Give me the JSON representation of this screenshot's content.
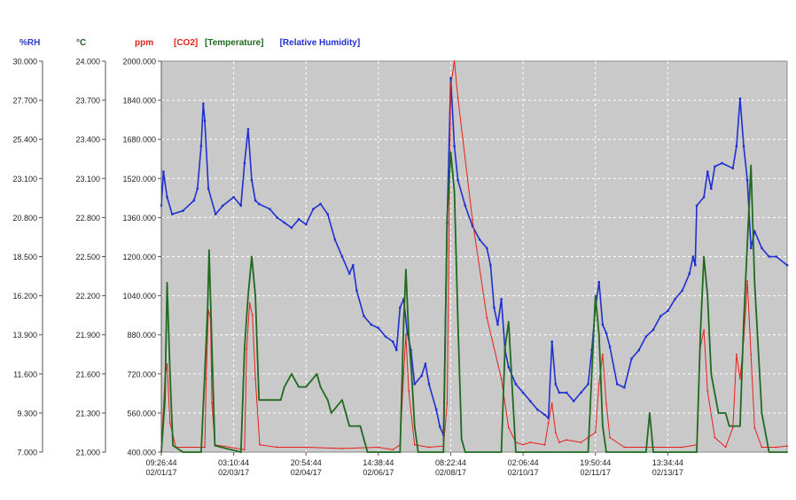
{
  "chart_data": {
    "type": "line",
    "axes": [
      {
        "id": "rh",
        "unit_label": "%RH",
        "color": "#2a3fbf",
        "range": [
          7.0,
          30.0
        ],
        "ticks": [
          "30.000",
          "27.700",
          "25.400",
          "23.100",
          "20.800",
          "18.500",
          "16.200",
          "13.900",
          "11.600",
          "9.300",
          "7.000"
        ]
      },
      {
        "id": "temp",
        "unit_label": "°C",
        "color": "#1f5f1f",
        "range": [
          21.0,
          24.0
        ],
        "ticks": [
          "24.000",
          "23.700",
          "23.400",
          "23.100",
          "22.800",
          "22.500",
          "22.200",
          "21.900",
          "21.600",
          "21.300",
          "21.000"
        ]
      },
      {
        "id": "co2",
        "unit_label": "ppm",
        "color": "#e0201a",
        "range": [
          400.0,
          2000.0
        ],
        "ticks": [
          "2000.000",
          "1840.000",
          "1680.000",
          "1520.000",
          "1360.000",
          "1200.000",
          "1040.000",
          "880.000",
          "720.000",
          "560.000",
          "400.000"
        ]
      }
    ],
    "x_ticks": [
      {
        "time": "09:26:44",
        "date": "02/01/17"
      },
      {
        "time": "03:10:44",
        "date": "02/03/17"
      },
      {
        "time": "20:54:44",
        "date": "02/04/17"
      },
      {
        "time": "14:38:44",
        "date": "02/06/17"
      },
      {
        "time": "08:22:44",
        "date": "02/08/17"
      },
      {
        "time": "02:06:44",
        "date": "02/10/17"
      },
      {
        "time": "19:50:44",
        "date": "02/11/17"
      },
      {
        "time": "13:34:44",
        "date": "02/13/17"
      }
    ],
    "x_range_ticks": [
      0,
      8.65
    ],
    "grid": true,
    "legend_position": "top",
    "series": [
      {
        "name": "[CO2]",
        "axis": "co2",
        "color": "#e8201a",
        "points": [
          [
            0,
            420
          ],
          [
            0.05,
            700
          ],
          [
            0.08,
            760
          ],
          [
            0.12,
            520
          ],
          [
            0.2,
            420
          ],
          [
            0.6,
            420
          ],
          [
            0.62,
            700
          ],
          [
            0.65,
            980
          ],
          [
            0.68,
            950
          ],
          [
            0.7,
            600
          ],
          [
            0.74,
            430
          ],
          [
            1.15,
            410
          ],
          [
            1.18,
            820
          ],
          [
            1.22,
            1010
          ],
          [
            1.26,
            960
          ],
          [
            1.3,
            700
          ],
          [
            1.36,
            430
          ],
          [
            1.6,
            420
          ],
          [
            2.0,
            420
          ],
          [
            2.5,
            415
          ],
          [
            3.0,
            420
          ],
          [
            3.2,
            410
          ],
          [
            3.3,
            430
          ],
          [
            3.35,
            720
          ],
          [
            3.38,
            880
          ],
          [
            3.42,
            650
          ],
          [
            3.5,
            430
          ],
          [
            3.7,
            420
          ],
          [
            3.9,
            425
          ],
          [
            3.95,
            600
          ],
          [
            4.0,
            1900
          ],
          [
            4.05,
            2000
          ],
          [
            4.1,
            1850
          ],
          [
            4.3,
            1350
          ],
          [
            4.5,
            950
          ],
          [
            4.7,
            700
          ],
          [
            4.8,
            500
          ],
          [
            4.9,
            440
          ],
          [
            5.0,
            430
          ],
          [
            5.1,
            440
          ],
          [
            5.3,
            430
          ],
          [
            5.35,
            520
          ],
          [
            5.4,
            600
          ],
          [
            5.45,
            480
          ],
          [
            5.5,
            440
          ],
          [
            5.6,
            450
          ],
          [
            5.8,
            440
          ],
          [
            5.9,
            460
          ],
          [
            6.0,
            480
          ],
          [
            6.05,
            680
          ],
          [
            6.1,
            800
          ],
          [
            6.15,
            600
          ],
          [
            6.2,
            460
          ],
          [
            6.4,
            420
          ],
          [
            6.8,
            420
          ],
          [
            7.2,
            420
          ],
          [
            7.4,
            430
          ],
          [
            7.45,
            830
          ],
          [
            7.5,
            900
          ],
          [
            7.55,
            650
          ],
          [
            7.65,
            460
          ],
          [
            7.8,
            420
          ],
          [
            7.9,
            500
          ],
          [
            7.95,
            800
          ],
          [
            8.0,
            700
          ],
          [
            8.05,
            860
          ],
          [
            8.1,
            1100
          ],
          [
            8.15,
            800
          ],
          [
            8.2,
            500
          ],
          [
            8.3,
            420
          ],
          [
            8.5,
            420
          ],
          [
            8.65,
            425
          ]
        ]
      },
      {
        "name": "[Temperature]",
        "axis": "temp",
        "color": "#1f6a1f",
        "points": [
          [
            0,
            21.0
          ],
          [
            0.05,
            21.4
          ],
          [
            0.08,
            22.3
          ],
          [
            0.12,
            21.6
          ],
          [
            0.16,
            21.05
          ],
          [
            0.3,
            21.0
          ],
          [
            0.55,
            21.0
          ],
          [
            0.6,
            21.6
          ],
          [
            0.64,
            22.1
          ],
          [
            0.66,
            22.55
          ],
          [
            0.7,
            21.8
          ],
          [
            0.74,
            21.05
          ],
          [
            1.1,
            21.0
          ],
          [
            1.15,
            21.8
          ],
          [
            1.2,
            22.2
          ],
          [
            1.25,
            22.5
          ],
          [
            1.3,
            22.2
          ],
          [
            1.35,
            21.4
          ],
          [
            1.45,
            21.4
          ],
          [
            1.65,
            21.4
          ],
          [
            1.7,
            21.5
          ],
          [
            1.8,
            21.6
          ],
          [
            1.9,
            21.5
          ],
          [
            2.0,
            21.5
          ],
          [
            2.15,
            21.6
          ],
          [
            2.2,
            21.5
          ],
          [
            2.3,
            21.4
          ],
          [
            2.35,
            21.3
          ],
          [
            2.5,
            21.4
          ],
          [
            2.55,
            21.3
          ],
          [
            2.6,
            21.2
          ],
          [
            2.75,
            21.2
          ],
          [
            2.8,
            21.1
          ],
          [
            2.85,
            21.0
          ],
          [
            3.3,
            21.0
          ],
          [
            3.35,
            22.0
          ],
          [
            3.38,
            22.4
          ],
          [
            3.42,
            21.9
          ],
          [
            3.46,
            21.6
          ],
          [
            3.5,
            21.2
          ],
          [
            3.55,
            21.0
          ],
          [
            3.9,
            21.0
          ],
          [
            3.95,
            22.8
          ],
          [
            4.0,
            23.3
          ],
          [
            4.05,
            23.0
          ],
          [
            4.1,
            22.0
          ],
          [
            4.15,
            21.1
          ],
          [
            4.2,
            21.0
          ],
          [
            4.7,
            21.0
          ],
          [
            4.75,
            21.8
          ],
          [
            4.8,
            22.0
          ],
          [
            4.85,
            21.5
          ],
          [
            4.9,
            21.0
          ],
          [
            5.3,
            21.0
          ],
          [
            5.9,
            21.0
          ],
          [
            5.95,
            21.6
          ],
          [
            6.0,
            22.2
          ],
          [
            6.05,
            21.9
          ],
          [
            6.1,
            21.2
          ],
          [
            6.15,
            21.0
          ],
          [
            6.7,
            21.0
          ],
          [
            6.75,
            21.3
          ],
          [
            6.8,
            21.0
          ],
          [
            7.4,
            21.0
          ],
          [
            7.45,
            21.9
          ],
          [
            7.5,
            22.5
          ],
          [
            7.55,
            22.2
          ],
          [
            7.6,
            21.6
          ],
          [
            7.7,
            21.3
          ],
          [
            7.8,
            21.3
          ],
          [
            7.85,
            21.2
          ],
          [
            8.0,
            21.2
          ],
          [
            8.05,
            22.0
          ],
          [
            8.1,
            22.6
          ],
          [
            8.15,
            23.2
          ],
          [
            8.2,
            22.3
          ],
          [
            8.3,
            21.3
          ],
          [
            8.4,
            21.0
          ],
          [
            8.65,
            21.0
          ]
        ]
      },
      {
        "name": "[Relative Humidity]",
        "axis": "rh",
        "color": "#1f30d0",
        "points": [
          [
            0,
            21.5
          ],
          [
            0.03,
            23.5
          ],
          [
            0.08,
            22.0
          ],
          [
            0.15,
            21.0
          ],
          [
            0.3,
            21.2
          ],
          [
            0.45,
            21.8
          ],
          [
            0.5,
            22.5
          ],
          [
            0.55,
            25.0
          ],
          [
            0.58,
            27.5
          ],
          [
            0.6,
            26.5
          ],
          [
            0.65,
            22.5
          ],
          [
            0.75,
            21.0
          ],
          [
            0.85,
            21.5
          ],
          [
            1.0,
            22.0
          ],
          [
            1.1,
            21.5
          ],
          [
            1.15,
            24.0
          ],
          [
            1.2,
            26.0
          ],
          [
            1.25,
            23.0
          ],
          [
            1.3,
            21.8
          ],
          [
            1.35,
            21.6
          ],
          [
            1.5,
            21.3
          ],
          [
            1.6,
            20.8
          ],
          [
            1.7,
            20.5
          ],
          [
            1.8,
            20.2
          ],
          [
            1.9,
            20.7
          ],
          [
            2.0,
            20.4
          ],
          [
            2.1,
            21.3
          ],
          [
            2.2,
            21.6
          ],
          [
            2.3,
            21.0
          ],
          [
            2.4,
            19.5
          ],
          [
            2.5,
            18.5
          ],
          [
            2.6,
            17.5
          ],
          [
            2.65,
            18.0
          ],
          [
            2.7,
            16.5
          ],
          [
            2.8,
            15.0
          ],
          [
            2.9,
            14.5
          ],
          [
            3.0,
            14.3
          ],
          [
            3.1,
            13.8
          ],
          [
            3.2,
            13.5
          ],
          [
            3.25,
            13.0
          ],
          [
            3.3,
            15.5
          ],
          [
            3.35,
            16.0
          ],
          [
            3.4,
            14.0
          ],
          [
            3.45,
            13.0
          ],
          [
            3.5,
            11.0
          ],
          [
            3.6,
            11.5
          ],
          [
            3.65,
            12.2
          ],
          [
            3.7,
            11.0
          ],
          [
            3.8,
            9.5
          ],
          [
            3.85,
            8.5
          ],
          [
            3.9,
            8.0
          ],
          [
            3.95,
            20.5
          ],
          [
            4.0,
            29.0
          ],
          [
            4.05,
            25.0
          ],
          [
            4.1,
            23.0
          ],
          [
            4.2,
            21.5
          ],
          [
            4.3,
            20.3
          ],
          [
            4.4,
            19.5
          ],
          [
            4.5,
            19.0
          ],
          [
            4.55,
            18.0
          ],
          [
            4.6,
            15.5
          ],
          [
            4.65,
            14.5
          ],
          [
            4.7,
            16.0
          ],
          [
            4.75,
            13.0
          ],
          [
            4.8,
            12.0
          ],
          [
            4.9,
            11.0
          ],
          [
            5.0,
            10.5
          ],
          [
            5.1,
            10.0
          ],
          [
            5.2,
            9.5
          ],
          [
            5.3,
            9.2
          ],
          [
            5.35,
            9.0
          ],
          [
            5.4,
            13.5
          ],
          [
            5.45,
            11.0
          ],
          [
            5.5,
            10.5
          ],
          [
            5.6,
            10.5
          ],
          [
            5.7,
            10.0
          ],
          [
            5.8,
            10.5
          ],
          [
            5.9,
            11.0
          ],
          [
            5.95,
            13.0
          ],
          [
            6.0,
            15.5
          ],
          [
            6.05,
            17.0
          ],
          [
            6.1,
            14.5
          ],
          [
            6.15,
            14.0
          ],
          [
            6.2,
            13.2
          ],
          [
            6.3,
            11.0
          ],
          [
            6.4,
            10.8
          ],
          [
            6.5,
            12.5
          ],
          [
            6.6,
            13.0
          ],
          [
            6.7,
            13.8
          ],
          [
            6.8,
            14.2
          ],
          [
            6.9,
            15.0
          ],
          [
            7.0,
            15.3
          ],
          [
            7.1,
            16.0
          ],
          [
            7.2,
            16.5
          ],
          [
            7.3,
            17.5
          ],
          [
            7.35,
            18.5
          ],
          [
            7.38,
            18.0
          ],
          [
            7.4,
            21.5
          ],
          [
            7.5,
            22.0
          ],
          [
            7.55,
            23.5
          ],
          [
            7.6,
            22.5
          ],
          [
            7.65,
            23.8
          ],
          [
            7.75,
            24.0
          ],
          [
            7.9,
            23.7
          ],
          [
            7.95,
            25.0
          ],
          [
            8.0,
            27.8
          ],
          [
            8.05,
            25.0
          ],
          [
            8.1,
            23.0
          ],
          [
            8.15,
            19.0
          ],
          [
            8.2,
            20.0
          ],
          [
            8.3,
            19.0
          ],
          [
            8.4,
            18.5
          ],
          [
            8.5,
            18.5
          ],
          [
            8.65,
            18.0
          ]
        ]
      }
    ]
  }
}
